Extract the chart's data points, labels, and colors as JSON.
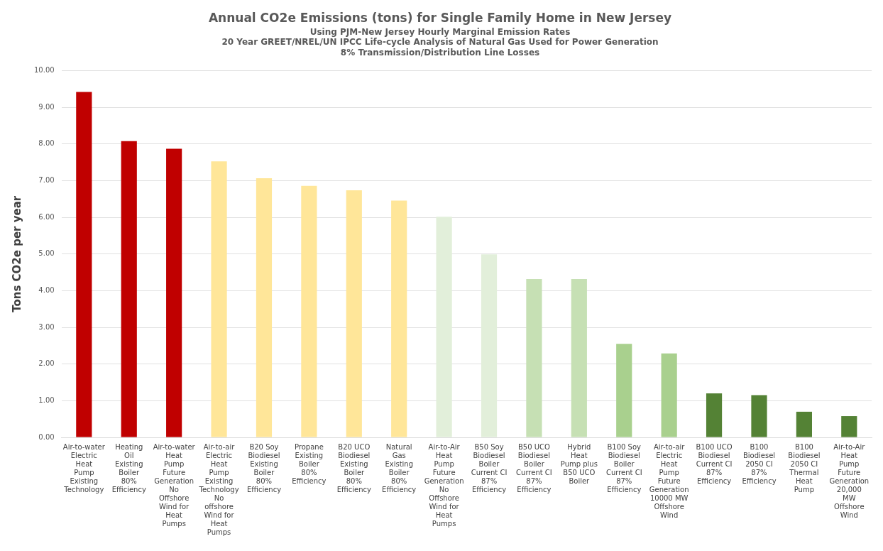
{
  "chart_data": {
    "type": "bar",
    "title": "Annual CO2e Emissions (tons) for Single Family Home in New Jersey",
    "subtitle": "Using PJM-New Jersey Hourly Marginal Emission Rates\n20 Year GREET/NREL/UN IPCC Life-cycle Analysis of Natural Gas Used for Power Generation\n8% Transmission/Distribution Line Losses",
    "ylabel": "Tons CO2e per year",
    "categories": [
      "Air-to-water Electric Heat Pump Existing Technology",
      "Heating Oil Existing Boiler 80% Efficiency",
      "Air-to-water Heat Pump Future Generation No Offshore Wind for Heat Pumps",
      "Air-to-air Electric Heat Pump Existing Technology No offshore Wind for Heat Pumps",
      "B20 Soy Biodiesel Existing Boiler 80% Efficiency",
      "Propane Existing Boiler 80% Efficiency",
      "B20 UCO Biodiesel Existing Boiler 80% Efficiency",
      "Natural Gas Existing Boiler 80% Efficiency",
      "Air-to-Air Heat Pump Future Generation No Offshore Wind for Heat Pumps",
      "B50 Soy Biodiesel Boiler Current CI 87% Efficiency",
      "B50 UCO Biodiesel Boiler Current CI 87% Efficiency",
      "Hybrid Heat Pump plus B50 UCO Boiler",
      "B100 Soy Biodiesel Boiler Current CI 87% Efficiency",
      "Air-to-air Electric Heat Pump Future Generation 10000 MW Offshore Wind",
      "B100 UCO Biodiesel Current CI 87% Efficiency",
      "B100 Biodiesel 2050 CI 87% Efficiency",
      "B100 Biodiesel 2050 CI Thermal Heat Pump",
      "Air-to-Air Heat Pump Future Generation 20,000 MW Offshore Wind"
    ],
    "values": [
      9.42,
      8.08,
      7.87,
      7.53,
      7.07,
      6.86,
      6.74,
      6.46,
      6.02,
      4.99,
      4.32,
      4.32,
      2.55,
      2.29,
      1.2,
      1.15,
      0.7,
      0.58
    ],
    "colors": [
      "#c00000",
      "#c00000",
      "#c00000",
      "#ffe699",
      "#ffe699",
      "#ffe699",
      "#ffe699",
      "#ffe699",
      "#e2efda",
      "#e2efda",
      "#c6e0b4",
      "#c6e0b4",
      "#a9d08e",
      "#a9d08e",
      "#548235",
      "#548235",
      "#548235",
      "#548235"
    ],
    "ylim": [
      0,
      10
    ],
    "yticks": [
      {
        "value": 0,
        "label": "0.00"
      },
      {
        "value": 1,
        "label": "1.00"
      },
      {
        "value": 2,
        "label": "2.00"
      },
      {
        "value": 3,
        "label": "3.00"
      },
      {
        "value": 4,
        "label": "4.00"
      },
      {
        "value": 5,
        "label": "5.00"
      },
      {
        "value": 6,
        "label": "6.00"
      },
      {
        "value": 7,
        "label": "7.00"
      },
      {
        "value": 8,
        "label": "8.00"
      },
      {
        "value": 9,
        "label": "9.00"
      },
      {
        "value": 10,
        "label": "10.00"
      }
    ],
    "grid": "y"
  }
}
